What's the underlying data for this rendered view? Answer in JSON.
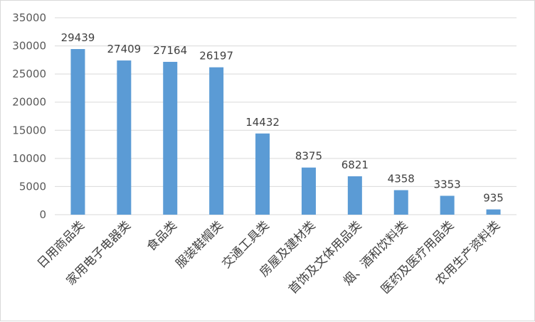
{
  "chart_data": {
    "type": "bar",
    "categories": [
      "日用商品类",
      "家用电子电器类",
      "食品类",
      "服装鞋帽类",
      "交通工具类",
      "房屋及建材类",
      "首饰及文体用品类",
      "烟、酒和饮料类",
      "医药及医疗用品类",
      "农用生产资料类"
    ],
    "values": [
      29439,
      27409,
      27164,
      26197,
      14432,
      8375,
      6821,
      4358,
      3353,
      935
    ],
    "data_labels": [
      "29439",
      "27409",
      "27164",
      "26197",
      "14432",
      "8375",
      "6821",
      "4358",
      "3353",
      "935"
    ],
    "yticks": [
      "0",
      "5000",
      "10000",
      "15000",
      "20000",
      "25000",
      "30000",
      "35000"
    ],
    "ytick_values": [
      0,
      5000,
      10000,
      15000,
      20000,
      25000,
      30000,
      35000
    ],
    "ylim": [
      0,
      35000
    ],
    "grid": true,
    "legend": "none",
    "bar_color": "#5b9bd5",
    "grid_color": "#d9d9d9",
    "title": "",
    "xlabel": "",
    "ylabel": ""
  }
}
